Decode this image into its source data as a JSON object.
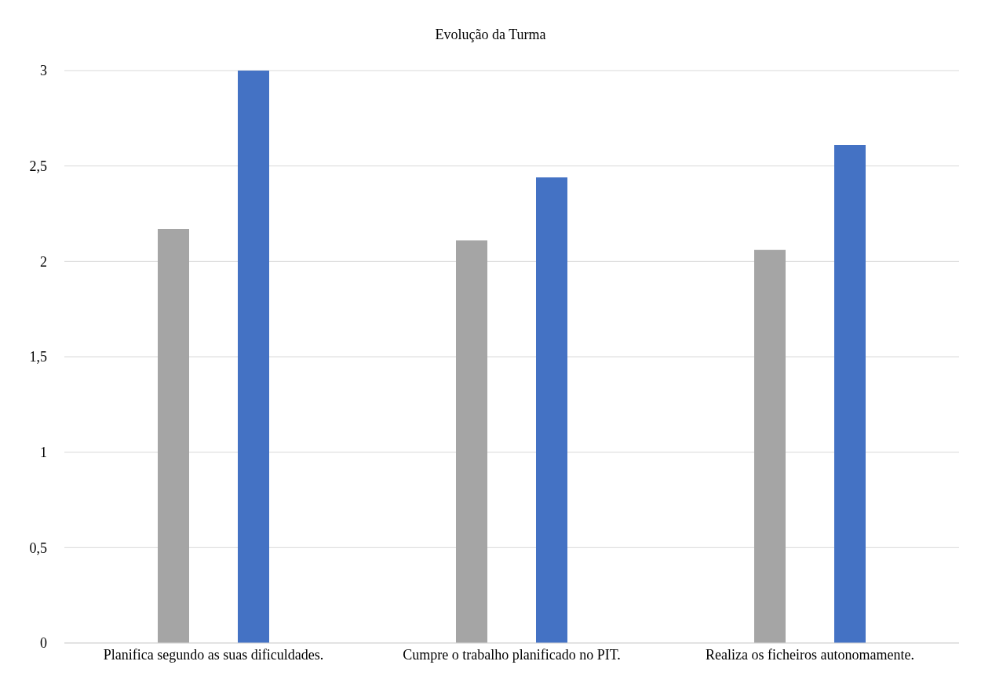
{
  "chart_data": {
    "type": "bar",
    "title": "Evolução da Turma",
    "categories": [
      "Planifica segundo as suas dificuldades.",
      "Cumpre o trabalho planificado no PIT.",
      "Realiza os ficheiros autonomamente."
    ],
    "series": [
      {
        "color": "#a5a5a5",
        "values": [
          2.17,
          2.11,
          2.06
        ]
      },
      {
        "color": "#4472c4",
        "values": [
          3,
          2.44,
          2.61
        ]
      }
    ],
    "ylim": [
      0,
      3
    ],
    "yticks": [
      {
        "value": 0,
        "label": "0"
      },
      {
        "value": 0.5,
        "label": "0,5"
      },
      {
        "value": 1,
        "label": "1"
      },
      {
        "value": 1.5,
        "label": "1,5"
      },
      {
        "value": 2,
        "label": "2"
      },
      {
        "value": 2.5,
        "label": "2,5"
      },
      {
        "value": 3,
        "label": "3"
      }
    ],
    "grid": "y",
    "legend": false
  }
}
